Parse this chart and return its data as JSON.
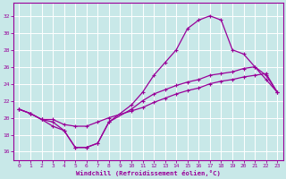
{
  "background_color": "#c8e8e8",
  "line_color": "#990099",
  "grid_color": "#ffffff",
  "xlabel": "Windchill (Refroidissement éolien,°C)",
  "xlabel_color": "#990099",
  "xtick_color": "#990099",
  "ytick_color": "#990099",
  "xlim": [
    -0.5,
    23.5
  ],
  "ylim": [
    15.0,
    33.5
  ],
  "yticks": [
    16,
    18,
    20,
    22,
    24,
    26,
    28,
    30,
    32
  ],
  "xticks": [
    0,
    1,
    2,
    3,
    4,
    5,
    6,
    7,
    8,
    9,
    10,
    11,
    12,
    13,
    14,
    15,
    16,
    17,
    18,
    19,
    20,
    21,
    22,
    23
  ],
  "curve_x": [
    0,
    1,
    2,
    3,
    4,
    5,
    6,
    7,
    8,
    10,
    11,
    12,
    13,
    14,
    15,
    16,
    17,
    18,
    19,
    20,
    21,
    22,
    23
  ],
  "curve_y": [
    21,
    20.5,
    19.8,
    19.0,
    18.5,
    16.5,
    16.5,
    17.0,
    19.5,
    21.5,
    23.0,
    25.0,
    26.5,
    28.0,
    30.5,
    31.5,
    32.0,
    31.5,
    28.0,
    27.5,
    26.0,
    25.0,
    23.0
  ],
  "diag1_x": [
    0,
    1,
    2,
    3,
    4,
    5,
    6,
    7,
    8,
    10,
    11,
    12,
    13,
    14,
    15,
    16,
    17,
    18,
    19,
    20,
    21,
    22,
    23
  ],
  "diag1_y": [
    21,
    20.5,
    19.8,
    19.8,
    19.2,
    19.0,
    19.0,
    19.5,
    20.0,
    20.8,
    21.2,
    21.8,
    22.3,
    22.8,
    23.2,
    23.5,
    24.0,
    24.3,
    24.5,
    24.8,
    25.0,
    25.2,
    23.0
  ],
  "diag2_x": [
    0,
    1,
    2,
    3,
    4,
    5,
    6,
    7,
    8,
    10,
    11,
    12,
    13,
    14,
    15,
    16,
    17,
    18,
    19,
    20,
    21,
    22,
    23
  ],
  "diag2_y": [
    21,
    20.5,
    19.8,
    19.5,
    18.5,
    16.5,
    16.5,
    17.0,
    19.5,
    21.0,
    22.0,
    22.8,
    23.3,
    23.8,
    24.2,
    24.5,
    25.0,
    25.2,
    25.4,
    25.8,
    26.0,
    24.5,
    23.0
  ]
}
